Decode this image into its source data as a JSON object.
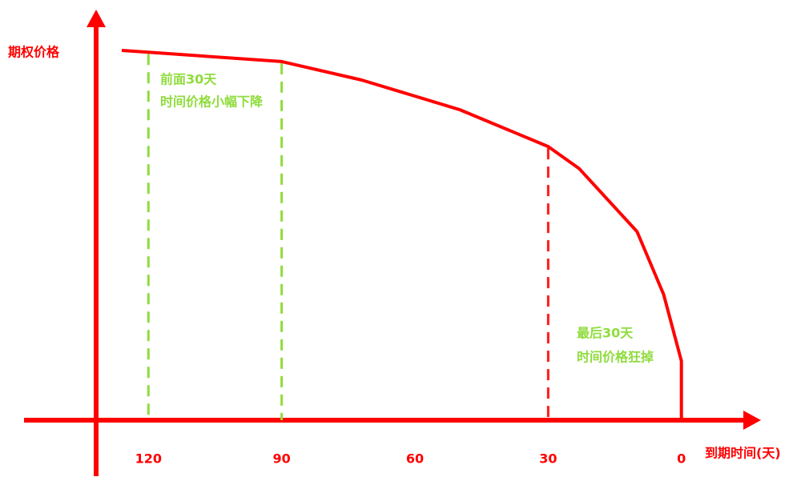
{
  "chart_data": {
    "type": "line",
    "y_label": "期权价格",
    "x_label": "到期时间(天)",
    "x": [
      126,
      120,
      90,
      72,
      50,
      30,
      23,
      10,
      4,
      0,
      0
    ],
    "series": [
      {
        "color": "#ff0000",
        "values": [
          100,
          99.5,
          97,
          92,
          84,
          74,
          68,
          51,
          34,
          16,
          0
        ]
      }
    ],
    "xlim": [
      148,
      -17
    ],
    "ylim": [
      0,
      100
    ],
    "xticks": [
      120,
      90,
      60,
      30,
      0
    ],
    "axis_color": "#ff0000",
    "vlines": [
      {
        "x": 120,
        "color": "#8fdc3c"
      },
      {
        "x": 90,
        "color": "#8fdc3c"
      },
      {
        "x": 30,
        "color": "#ff1a1a"
      }
    ],
    "annotations": [
      {
        "text": "前面30天",
        "color": "#8fdc3c"
      },
      {
        "text": "时间价格小幅下降",
        "color": "#8fdc3c"
      },
      {
        "text": "最后30天",
        "color": "#8fdc3c"
      },
      {
        "text": "时间价格狂掉",
        "color": "#8fdc3c"
      }
    ]
  }
}
